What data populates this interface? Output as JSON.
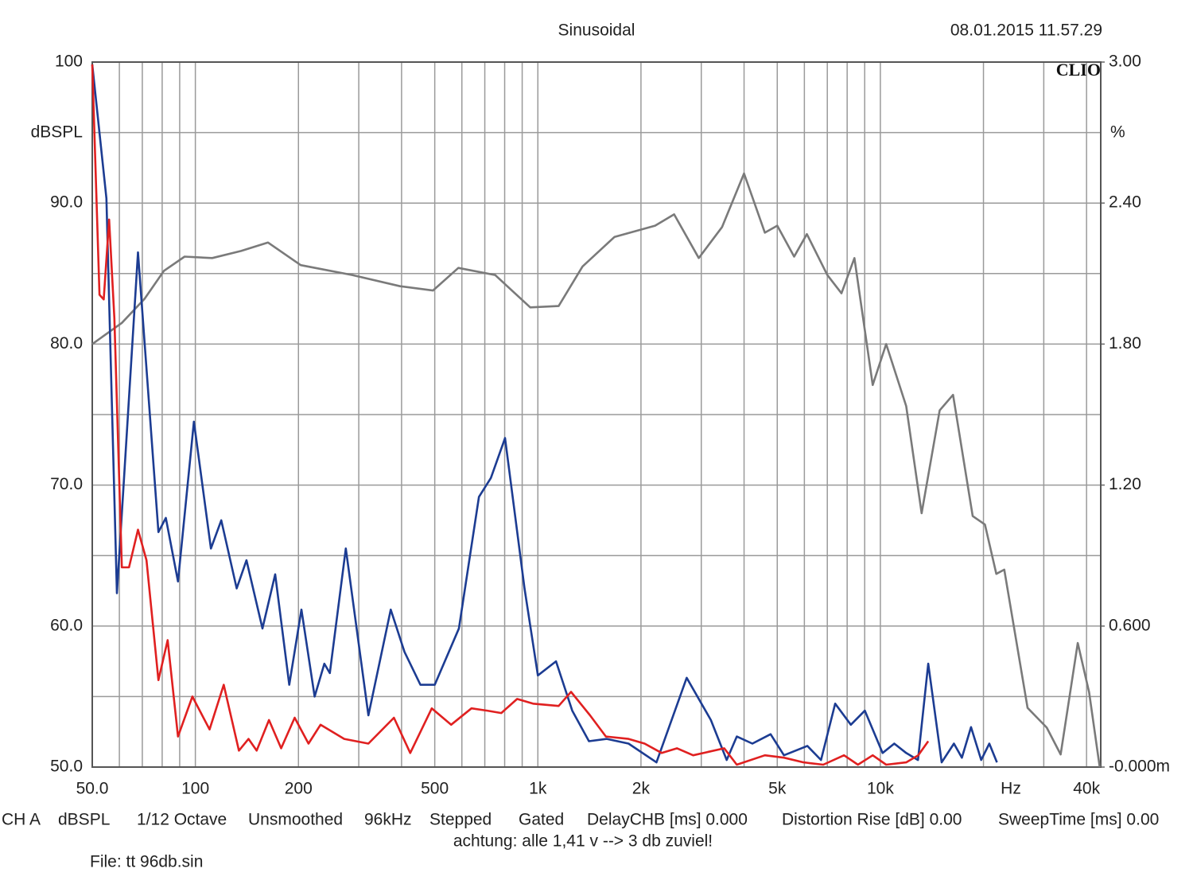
{
  "chart_data": {
    "type": "line",
    "title": "Sinusoidal",
    "timestamp": "08.01.2015 11.57.29",
    "logo": "CLIO",
    "y_label": "dBSPL",
    "y2_label": "%",
    "x_unit": "Hz",
    "xscale": "log",
    "xlim": [
      50,
      44000
    ],
    "xticks": [
      {
        "value": 50,
        "label": "50.0"
      },
      100,
      200,
      500,
      {
        "value": 1000,
        "label": "1k"
      },
      {
        "value": 2000,
        "label": "2k"
      },
      {
        "value": 5000,
        "label": "5k"
      },
      {
        "value": 10000,
        "label": "10k"
      },
      {
        "value": 40000,
        "label": "40k"
      }
    ],
    "xgrid": [
      60,
      70,
      80,
      90,
      300,
      400,
      600,
      700,
      800,
      900,
      3000,
      4000,
      6000,
      7000,
      8000,
      9000,
      20000,
      30000
    ],
    "ylim": [
      50,
      100
    ],
    "yticks": [
      {
        "value": 50,
        "label": "50.0"
      },
      {
        "value": 60,
        "label": "60.0"
      },
      {
        "value": 70,
        "label": "70.0"
      },
      {
        "value": 80,
        "label": "80.0"
      },
      {
        "value": 90,
        "label": "90.0"
      },
      100
    ],
    "ygrid": [
      55,
      65,
      75,
      85,
      95
    ],
    "y2lim": [
      0,
      3
    ],
    "y2ticks": [
      {
        "value": 0,
        "label": "-0.000m"
      },
      {
        "value": 0.6,
        "label": "0.600"
      },
      {
        "value": 1.2,
        "label": "1.20"
      },
      {
        "value": 1.8,
        "label": "1.80"
      },
      {
        "value": 2.4,
        "label": "2.40"
      },
      {
        "value": 3,
        "label": "3.00"
      }
    ],
    "grid": true,
    "series": [
      {
        "color": "#7a7a7a",
        "axis": "y",
        "x": [
          50,
          61,
          71,
          81,
          93,
          112,
          136,
          163,
          203,
          287,
          396,
          494,
          586,
          750,
          950,
          1150,
          1350,
          1675,
          2200,
          2500,
          2950,
          3450,
          4000,
          4600,
          5000,
          5600,
          6100,
          7000,
          7700,
          8400,
          9500,
          10400,
          11900,
          13200,
          14900,
          16300,
          18600,
          20200,
          21800,
          23000,
          26900,
          30600,
          33600,
          37700,
          40700,
          43700
        ],
        "values": [
          80.0,
          81.5,
          83.2,
          85.2,
          86.2,
          86.1,
          86.6,
          87.2,
          85.6,
          84.9,
          84.1,
          83.8,
          85.4,
          84.9,
          82.6,
          82.7,
          85.5,
          87.6,
          88.4,
          89.2,
          86.1,
          88.3,
          92.1,
          87.9,
          88.4,
          86.2,
          87.8,
          84.9,
          83.6,
          86.1,
          77.1,
          80.0,
          75.6,
          68.0,
          75.3,
          76.4,
          67.8,
          67.2,
          63.7,
          64.0,
          54.2,
          52.8,
          50.9,
          58.8,
          55.3,
          50.0
        ]
      },
      {
        "color": "#1c3c92",
        "axis": "y2",
        "x": [
          50,
          55,
          59,
          68,
          78,
          82,
          89,
          99,
          111,
          119,
          132,
          141,
          157,
          171,
          188,
          204,
          223,
          238,
          247,
          275,
          320,
          372,
          408,
          454,
          500,
          588,
          673,
          729,
          802,
          914,
          1000,
          1130,
          1260,
          1410,
          1590,
          1840,
          2220,
          2720,
          3200,
          3560,
          3810,
          4230,
          4780,
          5230,
          6120,
          6710,
          7380,
          8200,
          9010,
          10150,
          10980,
          11900,
          12880,
          13800,
          15100,
          16400,
          17300,
          18400,
          19700,
          20800,
          21900
        ],
        "values": [
          2.99,
          2.42,
          0.74,
          2.19,
          1.0,
          1.06,
          0.79,
          1.47,
          0.93,
          1.05,
          0.76,
          0.88,
          0.59,
          0.82,
          0.35,
          0.67,
          0.3,
          0.44,
          0.4,
          0.93,
          0.22,
          0.67,
          0.49,
          0.35,
          0.35,
          0.59,
          1.15,
          1.23,
          1.4,
          0.76,
          0.39,
          0.45,
          0.24,
          0.11,
          0.12,
          0.1,
          0.02,
          0.38,
          0.2,
          0.03,
          0.13,
          0.1,
          0.14,
          0.05,
          0.09,
          0.03,
          0.27,
          0.18,
          0.24,
          0.06,
          0.1,
          0.06,
          0.03,
          0.44,
          0.02,
          0.1,
          0.04,
          0.17,
          0.03,
          0.1,
          0.02
        ]
      },
      {
        "color": "#e02020",
        "axis": "y2",
        "x": [
          50,
          52.5,
          54,
          56,
          58,
          61,
          64,
          68,
          72,
          78,
          83,
          89,
          98,
          110,
          121,
          134,
          143,
          151,
          164,
          178,
          195,
          214,
          232,
          272,
          320,
          380,
          424,
          490,
          558,
          640,
          712,
          782,
          870,
          968,
          1150,
          1250,
          1420,
          1580,
          1840,
          2050,
          2300,
          2550,
          2840,
          3500,
          3810,
          4600,
          5230,
          5970,
          6810,
          7830,
          8600,
          9500,
          10400,
          11900,
          12900,
          13800
        ],
        "values": [
          2.99,
          2.01,
          1.99,
          2.33,
          1.91,
          0.85,
          0.85,
          1.01,
          0.88,
          0.37,
          0.54,
          0.13,
          0.3,
          0.16,
          0.35,
          0.07,
          0.12,
          0.07,
          0.2,
          0.08,
          0.21,
          0.1,
          0.18,
          0.12,
          0.1,
          0.21,
          0.06,
          0.25,
          0.18,
          0.25,
          0.24,
          0.23,
          0.29,
          0.27,
          0.26,
          0.32,
          0.22,
          0.13,
          0.12,
          0.1,
          0.06,
          0.08,
          0.05,
          0.08,
          0.01,
          0.05,
          0.04,
          0.02,
          0.01,
          0.05,
          0.01,
          0.05,
          0.01,
          0.02,
          0.05,
          0.11
        ]
      }
    ],
    "settings": [
      "CH A",
      "dBSPL",
      "1/12 Octave",
      "Unsmoothed",
      "96kHz",
      "Stepped",
      "Gated",
      "DelayCHB [ms] 0.000",
      "Distortion Rise [dB] 0.00",
      "SweepTime [ms] 0.00"
    ],
    "note": "achtung: alle 1,41 v --> 3 db zuviel!",
    "file": "File: tt 96db.sin"
  }
}
